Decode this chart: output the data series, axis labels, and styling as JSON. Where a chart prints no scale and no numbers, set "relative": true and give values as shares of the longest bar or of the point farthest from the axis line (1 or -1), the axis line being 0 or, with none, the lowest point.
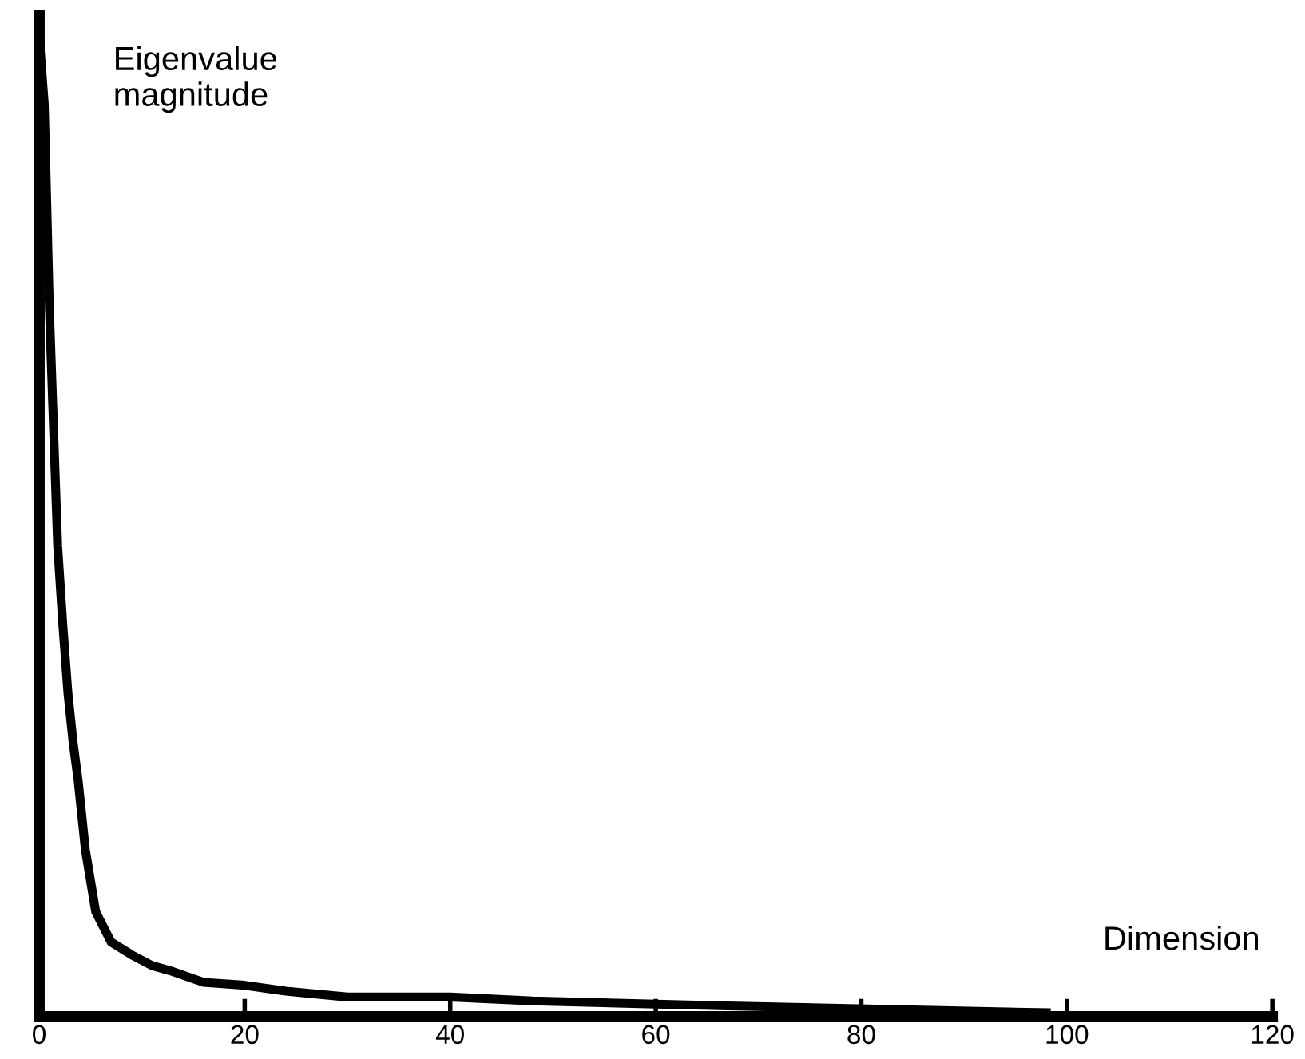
{
  "chart_data": {
    "type": "line",
    "relative": true,
    "xlabel": "Dimension",
    "ylabel": "Eigenvalue magnitude",
    "xlim": [
      0,
      120
    ],
    "xticks": [
      0,
      20,
      40,
      60,
      80,
      100,
      120
    ],
    "grid": false,
    "legend": false,
    "marker": "none",
    "line_style": "solid",
    "series": [
      {
        "color": "#000000",
        "x": [
          0,
          0.5,
          1,
          1.8,
          2.3,
          2.8,
          3.3,
          3.8,
          4.5,
          5.5,
          7,
          9,
          11,
          13,
          16,
          20,
          24,
          30,
          40,
          48,
          67,
          98
        ],
        "values": [
          1.0,
          0.93,
          0.72,
          0.48,
          0.4,
          0.33,
          0.28,
          0.24,
          0.17,
          0.107,
          0.076,
          0.063,
          0.052,
          0.046,
          0.035,
          0.032,
          0.026,
          0.02,
          0.02,
          0.016,
          0.011,
          0.004
        ]
      }
    ]
  }
}
